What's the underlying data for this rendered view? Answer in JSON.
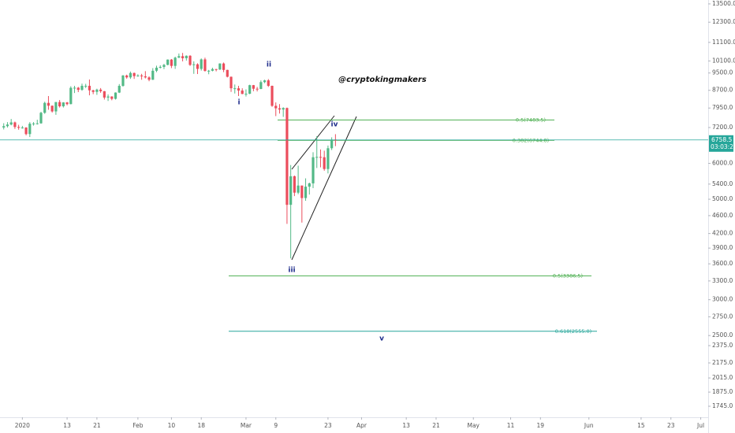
{
  "chart_data": {
    "type": "candlestick",
    "log_scale": true,
    "up_color": "#53b987",
    "down_color": "#eb4d5c",
    "xlim": [
      "2019-12-26",
      "2020-07-03"
    ],
    "ylim": [
      1650,
      13770
    ],
    "xticks": [
      {
        "value": "2020-01-01",
        "label": "2020"
      },
      {
        "value": "2020-01-13",
        "label": "13"
      },
      {
        "value": "2020-01-21",
        "label": "21"
      },
      {
        "value": "2020-02-01",
        "label": "Feb"
      },
      {
        "value": "2020-02-10",
        "label": "10"
      },
      {
        "value": "2020-02-18",
        "label": "18"
      },
      {
        "value": "2020-03-01",
        "label": "Mar"
      },
      {
        "value": "2020-03-09",
        "label": "9"
      },
      {
        "value": "2020-03-23",
        "label": "23"
      },
      {
        "value": "2020-04-01",
        "label": "Apr"
      },
      {
        "value": "2020-04-13",
        "label": "13"
      },
      {
        "value": "2020-04-21",
        "label": "21"
      },
      {
        "value": "2020-05-01",
        "label": "May"
      },
      {
        "value": "2020-05-11",
        "label": "11"
      },
      {
        "value": "2020-05-19",
        "label": "19"
      },
      {
        "value": "2020-06-01",
        "label": "Jun"
      },
      {
        "value": "2020-06-15",
        "label": "15"
      },
      {
        "value": "2020-06-23",
        "label": "23"
      },
      {
        "value": "2020-07-01",
        "label": "Jul"
      }
    ],
    "yticks": [
      {
        "value": 13500,
        "label": "13500.0"
      },
      {
        "value": 12300,
        "label": "12300.0"
      },
      {
        "value": 11100,
        "label": "11100.0"
      },
      {
        "value": 10100,
        "label": "10100.0"
      },
      {
        "value": 9500,
        "label": "9500.0"
      },
      {
        "value": 8700,
        "label": "8700.0"
      },
      {
        "value": 7950,
        "label": "7950.0"
      },
      {
        "value": 7200,
        "label": "7200.0"
      },
      {
        "value": 6000,
        "label": "6000.0"
      },
      {
        "value": 5400,
        "label": "5400.0"
      },
      {
        "value": 5000,
        "label": "5000.0"
      },
      {
        "value": 4600,
        "label": "4600.0"
      },
      {
        "value": 4200,
        "label": "4200.0"
      },
      {
        "value": 3900,
        "label": "3900.0"
      },
      {
        "value": 3600,
        "label": "3600.0"
      },
      {
        "value": 3300,
        "label": "3300.0"
      },
      {
        "value": 3000,
        "label": "3000.0"
      },
      {
        "value": 2750,
        "label": "2750.0"
      },
      {
        "value": 2500,
        "label": "2500.0"
      },
      {
        "value": 2375,
        "label": "2375.0"
      },
      {
        "value": 2175,
        "label": "2175.0"
      },
      {
        "value": 2015,
        "label": "2015.0"
      },
      {
        "value": 1875,
        "label": "1875.0"
      },
      {
        "value": 1745,
        "label": "1745.0"
      }
    ],
    "x": [
      "2019-12-27",
      "2019-12-28",
      "2019-12-29",
      "2019-12-30",
      "2019-12-31",
      "2020-01-01",
      "2020-01-02",
      "2020-01-03",
      "2020-01-04",
      "2020-01-05",
      "2020-01-06",
      "2020-01-07",
      "2020-01-08",
      "2020-01-09",
      "2020-01-10",
      "2020-01-11",
      "2020-01-12",
      "2020-01-13",
      "2020-01-14",
      "2020-01-15",
      "2020-01-16",
      "2020-01-17",
      "2020-01-18",
      "2020-01-19",
      "2020-01-20",
      "2020-01-21",
      "2020-01-22",
      "2020-01-23",
      "2020-01-24",
      "2020-01-25",
      "2020-01-26",
      "2020-01-27",
      "2020-01-28",
      "2020-01-29",
      "2020-01-30",
      "2020-01-31",
      "2020-02-01",
      "2020-02-02",
      "2020-02-03",
      "2020-02-04",
      "2020-02-05",
      "2020-02-06",
      "2020-02-07",
      "2020-02-08",
      "2020-02-09",
      "2020-02-10",
      "2020-02-11",
      "2020-02-12",
      "2020-02-13",
      "2020-02-14",
      "2020-02-15",
      "2020-02-16",
      "2020-02-17",
      "2020-02-18",
      "2020-02-19",
      "2020-02-20",
      "2020-02-21",
      "2020-02-22",
      "2020-02-23",
      "2020-02-24",
      "2020-02-25",
      "2020-02-26",
      "2020-02-27",
      "2020-02-28",
      "2020-02-29",
      "2020-03-01",
      "2020-03-02",
      "2020-03-03",
      "2020-03-04",
      "2020-03-05",
      "2020-03-06",
      "2020-03-07",
      "2020-03-08",
      "2020-03-09",
      "2020-03-10",
      "2020-03-11",
      "2020-03-12",
      "2020-03-13",
      "2020-03-14",
      "2020-03-15",
      "2020-03-16",
      "2020-03-17",
      "2020-03-18",
      "2020-03-19",
      "2020-03-20",
      "2020-03-21",
      "2020-03-22",
      "2020-03-23",
      "2020-03-24",
      "2020-03-25"
    ],
    "open": [
      7200,
      7250,
      7310,
      7390,
      7220,
      7195,
      7200,
      6965,
      7340,
      7350,
      7355,
      7760,
      8160,
      8045,
      7815,
      8195,
      8020,
      8180,
      8110,
      8810,
      8815,
      8720,
      8900,
      8900,
      8700,
      8630,
      8730,
      8660,
      8385,
      8430,
      8330,
      8600,
      8900,
      9380,
      9290,
      9500,
      9350,
      9380,
      9340,
      9290,
      9180,
      9610,
      9760,
      9800,
      9900,
      10170,
      9850,
      10270,
      10350,
      10240,
      10370,
      9900,
      9930,
      9700,
      10180,
      9600,
      9610,
      9690,
      9670,
      9970,
      9650,
      9320,
      8790,
      8790,
      8690,
      8540,
      8550,
      8930,
      8770,
      8760,
      9070,
      9150,
      8900,
      8040,
      7940,
      7890,
      7950,
      4860,
      5620,
      5170,
      5360,
      5030,
      5330,
      5420,
      6190,
      6200,
      6190,
      5830,
      6480,
      6770
    ],
    "high": [
      7360,
      7400,
      7520,
      7420,
      7300,
      7260,
      7210,
      7400,
      7400,
      7490,
      7800,
      8210,
      8450,
      8050,
      8200,
      8280,
      8190,
      8200,
      8880,
      8900,
      8850,
      9000,
      8990,
      9190,
      8720,
      8770,
      8800,
      8670,
      8520,
      8440,
      8610,
      8980,
      9400,
      9420,
      9570,
      9520,
      9440,
      9460,
      9590,
      9340,
      9740,
      9860,
      9880,
      9950,
      10180,
      10200,
      10320,
      10490,
      10520,
      10390,
      10400,
      10080,
      9980,
      10230,
      10270,
      9650,
      9760,
      9700,
      9980,
      10020,
      9660,
      9330,
      8960,
      8900,
      8790,
      8740,
      8950,
      8940,
      8850,
      9150,
      9180,
      9210,
      8910,
      8180,
      8110,
      7980,
      7970,
      5950,
      5640,
      5930,
      5360,
      5560,
      5440,
      6350,
      6890,
      6440,
      6400,
      6570,
      6850,
      6960
    ],
    "low": [
      7130,
      7200,
      7280,
      7150,
      7120,
      7160,
      6920,
      6860,
      7270,
      7310,
      7340,
      7720,
      7880,
      7770,
      7680,
      7970,
      7970,
      8060,
      8100,
      8580,
      8620,
      8680,
      8800,
      8480,
      8530,
      8500,
      8590,
      8300,
      8240,
      8270,
      8300,
      8580,
      8860,
      9230,
      9220,
      9220,
      9320,
      9180,
      9240,
      9110,
      9170,
      9540,
      9720,
      9690,
      9880,
      9740,
      9700,
      10250,
      10080,
      10120,
      9850,
      9460,
      9450,
      9620,
      9570,
      9440,
      9580,
      9580,
      9650,
      9540,
      9290,
      8630,
      8560,
      8450,
      8530,
      8430,
      8530,
      8660,
      8650,
      8750,
      9020,
      8850,
      8000,
      7630,
      7730,
      7600,
      4410,
      3700,
      5080,
      5130,
      4440,
      4960,
      5120,
      5290,
      5860,
      5880,
      5780,
      5700,
      6420,
      6550
    ],
    "close": [
      7250,
      7310,
      7390,
      7220,
      7195,
      7200,
      6965,
      7340,
      7350,
      7355,
      7760,
      8160,
      8045,
      7815,
      8195,
      8020,
      8180,
      8110,
      8810,
      8815,
      8720,
      8900,
      8900,
      8700,
      8630,
      8730,
      8660,
      8385,
      8430,
      8330,
      8600,
      8900,
      9380,
      9290,
      9500,
      9350,
      9380,
      9340,
      9290,
      9180,
      9610,
      9760,
      9800,
      9900,
      10170,
      9850,
      10270,
      10350,
      10240,
      10370,
      9900,
      9930,
      9700,
      10180,
      9600,
      9610,
      9690,
      9670,
      9970,
      9650,
      9320,
      8790,
      8790,
      8690,
      8540,
      8550,
      8930,
      8770,
      8760,
      9070,
      9150,
      8900,
      8040,
      7940,
      7890,
      7950,
      4860,
      5620,
      5170,
      5360,
      5030,
      5330,
      5420,
      6190,
      6200,
      6190,
      5830,
      6480,
      6770,
      6758.5
    ],
    "last_price": 6758.5,
    "last_price_color": "#26a69a",
    "countdown": "03:03:23",
    "levels": [
      {
        "value": 7483.5,
        "label": "0.5(7483.5)",
        "color": "#4caf50"
      },
      {
        "value": 6744.8,
        "label": "0.382(6744.8)",
        "color": "#4caf50"
      },
      {
        "value": 3386.5,
        "label": "0.5(3386.5)",
        "color": "#4caf50"
      },
      {
        "value": 2555.0,
        "label": "0.618(2555.0)",
        "color": "#26a69a"
      }
    ],
    "annotations": [
      "i",
      "ii",
      "iii",
      "iv",
      "v"
    ],
    "watermark": "@cryptokingmakers"
  }
}
